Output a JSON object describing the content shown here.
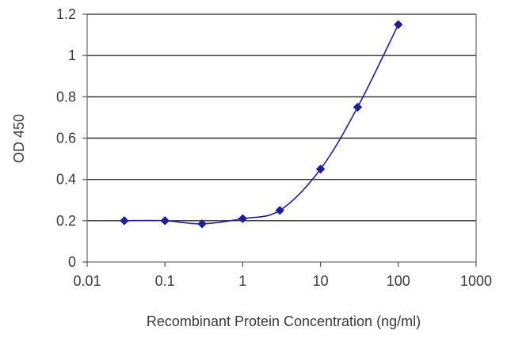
{
  "chart_data": {
    "type": "line",
    "title": "",
    "xlabel": "Recombinant Protein Concentration (ng/ml)",
    "ylabel": "OD 450",
    "x_scale": "log",
    "xlim": [
      0.01,
      1000
    ],
    "ylim": [
      0,
      1.2
    ],
    "x_ticks": [
      "0.01",
      "0.1",
      "1",
      "10",
      "100",
      "1000"
    ],
    "y_ticks": [
      "0",
      "0.2",
      "0.4",
      "0.6",
      "0.8",
      "1",
      "1.2"
    ],
    "grid": "horizontal",
    "legend": "none",
    "series": [
      {
        "color": "#1f1f99",
        "marker": "diamond",
        "x": [
          0.03,
          0.1,
          0.3,
          1,
          3,
          10,
          30,
          100
        ],
        "y": [
          0.2,
          0.2,
          0.185,
          0.21,
          0.25,
          0.45,
          0.75,
          1.15
        ]
      }
    ]
  }
}
